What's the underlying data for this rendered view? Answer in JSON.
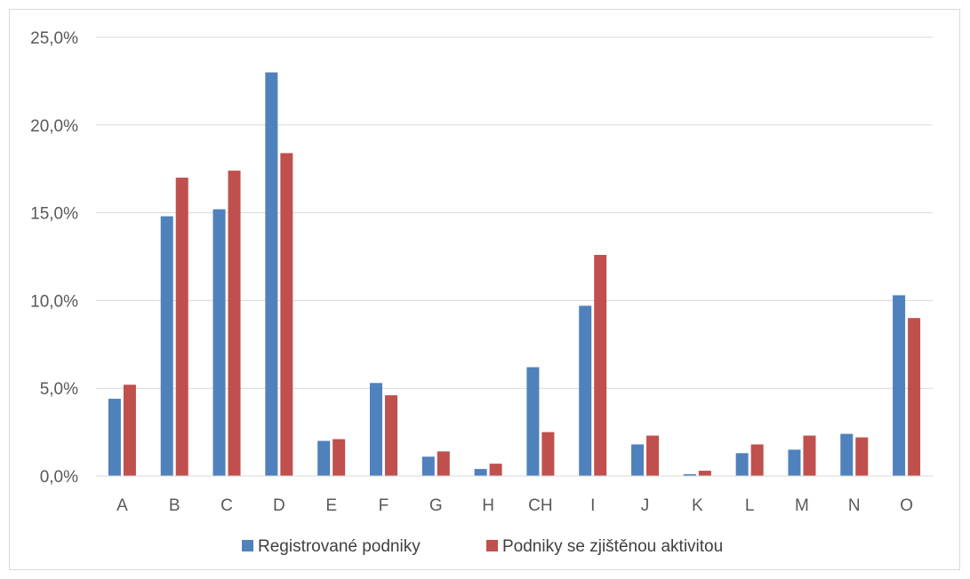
{
  "chart_data": {
    "type": "bar",
    "title": "",
    "xlabel": "",
    "ylabel": "",
    "categories": [
      "A",
      "B",
      "C",
      "D",
      "E",
      "F",
      "G",
      "H",
      "CH",
      "I",
      "J",
      "K",
      "L",
      "M",
      "N",
      "O"
    ],
    "series": [
      {
        "name": "Registrované podniky",
        "color": "#4f81bd",
        "values": [
          4.4,
          14.8,
          15.2,
          23.0,
          2.0,
          5.3,
          1.1,
          0.4,
          6.2,
          9.7,
          1.8,
          0.1,
          1.3,
          1.5,
          2.4,
          10.3
        ]
      },
      {
        "name": "Podniky se zjištěnou aktivitou",
        "color": "#c0504d",
        "values": [
          5.2,
          17.0,
          17.4,
          18.4,
          2.1,
          4.6,
          1.4,
          0.7,
          2.5,
          12.6,
          2.3,
          0.3,
          1.8,
          2.3,
          2.2,
          9.0
        ]
      }
    ],
    "ylim": [
      0,
      25
    ],
    "yticks": [
      "0,0%",
      "5,0%",
      "10,0%",
      "15,0%",
      "20,0%",
      "25,0%"
    ],
    "ytick_values": [
      0,
      5,
      10,
      15,
      20,
      25
    ],
    "grid": true,
    "legend_position": "bottom"
  }
}
